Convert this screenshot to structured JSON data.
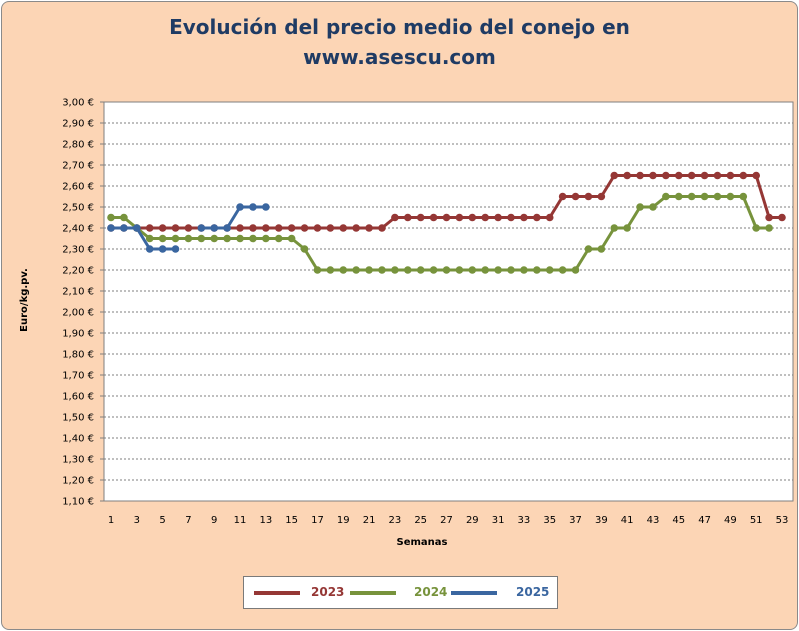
{
  "chart_data": {
    "type": "line",
    "title": "Evolución del precio medio del conejo en www.asescu.com",
    "title_lines": [
      "Evolución del precio medio del conejo en",
      "www.asescu.com"
    ],
    "xlabel": "Semanas",
    "ylabel": "Euro/kg.pv.",
    "ylim": [
      1.1,
      3.0
    ],
    "y_ticks": [
      "1,10 €",
      "1,20 €",
      "1,30 €",
      "1,40 €",
      "1,50 €",
      "1,60 €",
      "1,70 €",
      "1,80 €",
      "1,90 €",
      "2,00 €",
      "2,10 €",
      "2,20 €",
      "2,30 €",
      "2,40 €",
      "2,50 €",
      "2,60 €",
      "2,70 €",
      "2,80 €",
      "2,90 €",
      "3,00 €"
    ],
    "x_ticks": [
      "1",
      "3",
      "5",
      "7",
      "9",
      "11",
      "13",
      "15",
      "17",
      "19",
      "21",
      "23",
      "25",
      "27",
      "29",
      "31",
      "33",
      "35",
      "37",
      "39",
      "41",
      "43",
      "45",
      "47",
      "49",
      "51",
      "53"
    ],
    "xlim": [
      1,
      53
    ],
    "grid": true,
    "legend_position": "bottom",
    "series": [
      {
        "name": "2023",
        "color": "#953735",
        "x": [
          1,
          2,
          3,
          4,
          5,
          6,
          7,
          8,
          9,
          10,
          11,
          12,
          13,
          14,
          15,
          16,
          17,
          18,
          19,
          20,
          21,
          22,
          23,
          24,
          25,
          26,
          27,
          28,
          29,
          30,
          31,
          32,
          33,
          34,
          35,
          36,
          37,
          38,
          39,
          40,
          41,
          42,
          43,
          44,
          45,
          46,
          47,
          48,
          49,
          50,
          51,
          52,
          53
        ],
        "values": [
          2.4,
          2.4,
          2.4,
          2.4,
          2.4,
          2.4,
          2.4,
          2.4,
          2.4,
          2.4,
          2.4,
          2.4,
          2.4,
          2.4,
          2.4,
          2.4,
          2.4,
          2.4,
          2.4,
          2.4,
          2.4,
          2.4,
          2.45,
          2.45,
          2.45,
          2.45,
          2.45,
          2.45,
          2.45,
          2.45,
          2.45,
          2.45,
          2.45,
          2.45,
          2.45,
          2.55,
          2.55,
          2.55,
          2.55,
          2.65,
          2.65,
          2.65,
          2.65,
          2.65,
          2.65,
          2.65,
          2.65,
          2.65,
          2.65,
          2.65,
          2.65,
          2.45,
          2.45
        ]
      },
      {
        "name": "2024",
        "color": "#77933c",
        "x": [
          1,
          2,
          3,
          4,
          5,
          6,
          7,
          8,
          9,
          10,
          11,
          12,
          13,
          14,
          15,
          16,
          17,
          18,
          19,
          20,
          21,
          22,
          23,
          24,
          25,
          26,
          27,
          28,
          29,
          30,
          31,
          32,
          33,
          34,
          35,
          36,
          37,
          38,
          39,
          40,
          41,
          42,
          43,
          44,
          45,
          46,
          47,
          48,
          49,
          50,
          51,
          52
        ],
        "values": [
          2.45,
          2.45,
          2.4,
          2.35,
          2.35,
          2.35,
          2.35,
          2.35,
          2.35,
          2.35,
          2.35,
          2.35,
          2.35,
          2.35,
          2.35,
          2.3,
          2.2,
          2.2,
          2.2,
          2.2,
          2.2,
          2.2,
          2.2,
          2.2,
          2.2,
          2.2,
          2.2,
          2.2,
          2.2,
          2.2,
          2.2,
          2.2,
          2.2,
          2.2,
          2.2,
          2.2,
          2.2,
          2.3,
          2.3,
          2.4,
          2.4,
          2.5,
          2.5,
          2.55,
          2.55,
          2.55,
          2.55,
          2.55,
          2.55,
          2.55,
          2.4,
          2.4
        ]
      },
      {
        "name": "2025",
        "color": "#3a66a0",
        "x": [
          1,
          2,
          3,
          4,
          5,
          6,
          7,
          8,
          9,
          10,
          11,
          12,
          13
        ],
        "values": [
          2.4,
          2.4,
          2.4,
          2.3,
          2.3,
          2.3,
          null,
          2.4,
          2.4,
          2.4,
          2.5,
          2.5,
          2.5
        ]
      }
    ]
  }
}
